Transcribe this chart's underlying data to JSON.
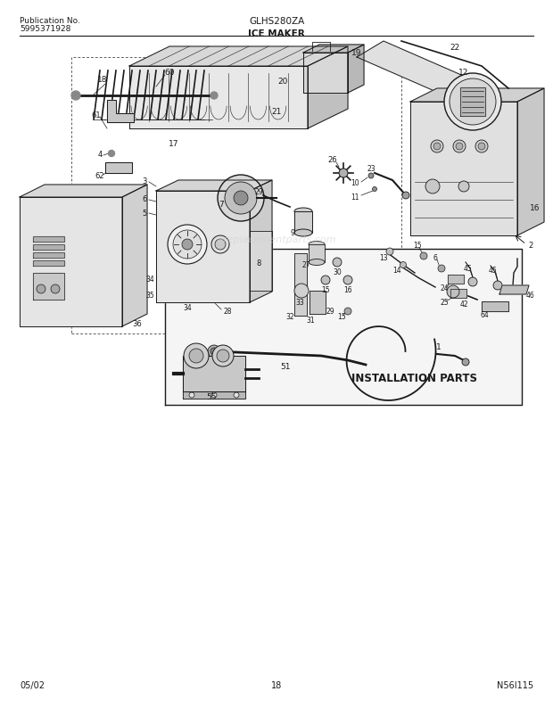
{
  "title_center": "GLHS280ZA",
  "title_sub": "ICE MAKER",
  "pub_label": "Publication No.",
  "pub_number": "5995371928",
  "footer_left": "05/02",
  "footer_center": "18",
  "footer_right": "N56I115",
  "bg_color": "#ffffff",
  "lc": "#1a1a1a",
  "watermark": "ereplacementparts.com",
  "diagram_note": "INSTALLATION PARTS",
  "fig_width": 6.2,
  "fig_height": 7.94,
  "dpi": 100
}
